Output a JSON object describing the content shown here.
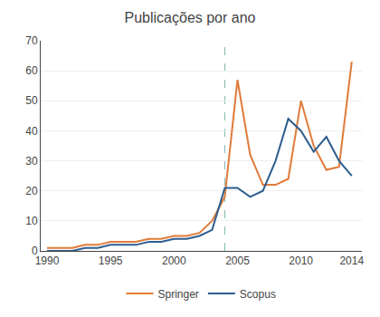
{
  "chart_data": {
    "type": "line",
    "title": "Publicações por ano",
    "x": [
      1990,
      1991,
      1992,
      1993,
      1994,
      1995,
      1996,
      1997,
      1998,
      1999,
      2000,
      2001,
      2002,
      2003,
      2004,
      2005,
      2006,
      2007,
      2008,
      2009,
      2010,
      2011,
      2012,
      2013,
      2014
    ],
    "series": [
      {
        "name": "Springer",
        "color": "#e07b39",
        "values": [
          1,
          1,
          1,
          2,
          2,
          3,
          3,
          3,
          4,
          4,
          5,
          5,
          6,
          10,
          18,
          57,
          32,
          22,
          22,
          24,
          50,
          35,
          27,
          28,
          63
        ]
      },
      {
        "name": "Scopus",
        "color": "#2e5d8e",
        "values": [
          0,
          0,
          0,
          1,
          1,
          2,
          2,
          2,
          3,
          3,
          4,
          4,
          5,
          7,
          21,
          21,
          18,
          20,
          30,
          44,
          40,
          33,
          38,
          30,
          25
        ]
      }
    ],
    "vline": {
      "x": 2004,
      "color": "#8ec0b8",
      "line_style": "dashed"
    },
    "xlim": [
      1989.5,
      2014.8
    ],
    "xticks": [
      1990,
      1995,
      2000,
      2005,
      2010,
      2014
    ],
    "ylim": [
      0,
      70
    ],
    "yticks": [
      0,
      10,
      20,
      30,
      40,
      50,
      60,
      70
    ],
    "grid": "y",
    "legend": "bottom"
  }
}
